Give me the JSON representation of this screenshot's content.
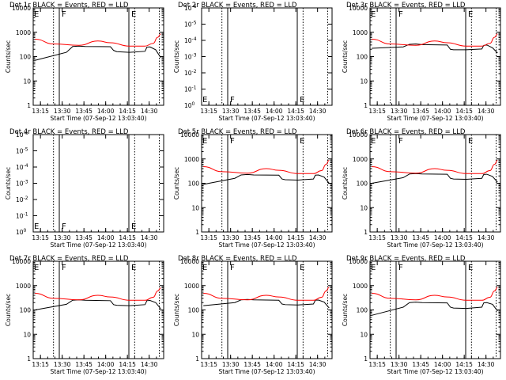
{
  "colors": {
    "events": "#000000",
    "lld": "#ff0000",
    "background": "#ffffff"
  },
  "chart_data": [
    {
      "type": "line",
      "title": "Det 1r BLACK = Events, RED = LLD",
      "xlabel": "Start Time (07-Sep-12 13:03:40)",
      "ylabel": "Counts/sec",
      "scale": "log",
      "yticks": [
        "1",
        "10",
        "100",
        "1000",
        "10000"
      ],
      "xticks": [
        "13:15",
        "13:30",
        "13:45",
        "14:00",
        "14:15",
        "14:30"
      ],
      "markers": [
        {
          "x": "13:28",
          "label": "F"
        },
        {
          "x": "14:16",
          "label": "E"
        }
      ],
      "series": [
        {
          "name": "Events",
          "color": "#000000",
          "x": [
            0,
            0.5,
            0.6,
            0.7,
            0.8,
            1.2,
            1.25,
            1.3,
            1.5,
            1.75,
            1.78,
            1.83,
            1.92,
            2.0
          ],
          "y": [
            70,
            150,
            260,
            270,
            260,
            255,
            180,
            160,
            150,
            165,
            245,
            250,
            190,
            90
          ]
        },
        {
          "name": "LLD",
          "color": "#ff0000",
          "x": [
            0,
            0.3,
            0.7,
            1.0,
            1.2,
            1.5,
            1.75,
            1.88,
            1.95,
            2.0
          ],
          "y": [
            520,
            330,
            290,
            440,
            370,
            270,
            270,
            350,
            620,
            850
          ]
        }
      ]
    },
    {
      "type": "line",
      "title": "Det 2r BLACK = Events, RED = LLD",
      "xlabel": "Start Time (07-Sep-12 13:03:40)",
      "ylabel": "Counts/sec",
      "scale": "linear-small",
      "yticks": [
        "10^0",
        "10^-1",
        "10^-2",
        "10^-3",
        "10^-4",
        "10^-5",
        "10^-6"
      ],
      "xticks": [
        "13:15",
        "13:30",
        "13:45",
        "14:00",
        "14:15",
        "14:30"
      ],
      "markers": [
        {
          "x": "13:28",
          "label": "F"
        },
        {
          "x": "14:16",
          "label": "E"
        }
      ],
      "series": []
    },
    {
      "type": "line",
      "title": "Det 3r BLACK = Events, RED = LLD",
      "xlabel": "Start Time (07-Sep-12 13:03:40)",
      "ylabel": "Counts/sec",
      "scale": "log",
      "yticks": [
        "1",
        "10",
        "100",
        "1000",
        "10000"
      ],
      "xticks": [
        "13:15",
        "13:30",
        "13:45",
        "14:00",
        "14:15",
        "14:30"
      ],
      "markers": [
        {
          "x": "13:28",
          "label": "F"
        },
        {
          "x": "14:16",
          "label": "E"
        }
      ],
      "series": [
        {
          "name": "Events",
          "color": "#000000",
          "x": [
            0,
            0.5,
            0.6,
            0.7,
            0.8,
            1.2,
            1.25,
            1.3,
            1.5,
            1.75,
            1.78,
            1.83,
            1.92,
            2.0
          ],
          "y": [
            220,
            250,
            320,
            330,
            310,
            300,
            200,
            190,
            190,
            205,
            290,
            300,
            230,
            140
          ]
        },
        {
          "name": "LLD",
          "color": "#ff0000",
          "x": [
            0,
            0.3,
            0.7,
            1.0,
            1.2,
            1.5,
            1.75,
            1.88,
            1.95,
            2.0
          ],
          "y": [
            520,
            330,
            290,
            440,
            370,
            270,
            270,
            350,
            620,
            850
          ]
        }
      ]
    },
    {
      "type": "line",
      "title": "Det 4r BLACK = Events, RED = LLD",
      "xlabel": "Start Time (07-Sep-12 13:03:40)",
      "ylabel": "Counts/sec",
      "scale": "linear-small",
      "yticks": [
        "10^0",
        "10^-1",
        "10^-2",
        "10^-3",
        "10^-4",
        "10^-5",
        "10^-6"
      ],
      "xticks": [
        "13:15",
        "13:30",
        "13:45",
        "14:00",
        "14:15",
        "14:30"
      ],
      "markers": [
        {
          "x": "13:28",
          "label": "F"
        },
        {
          "x": "14:16",
          "label": "E"
        }
      ],
      "series": []
    },
    {
      "type": "line",
      "title": "Det 5r BLACK = Events, RED = LLD",
      "xlabel": "Start Time (07-Sep-12 13:03:40)",
      "ylabel": "Counts/sec",
      "scale": "log",
      "yticks": [
        "1",
        "10",
        "100",
        "1000",
        "10000"
      ],
      "xticks": [
        "13:15",
        "13:30",
        "13:45",
        "14:00",
        "14:15",
        "14:30"
      ],
      "markers": [
        {
          "x": "13:28",
          "label": "F"
        },
        {
          "x": "14:16",
          "label": "E"
        }
      ],
      "series": [
        {
          "name": "Events",
          "color": "#000000",
          "x": [
            0,
            0.5,
            0.6,
            0.7,
            0.8,
            1.2,
            1.25,
            1.3,
            1.5,
            1.75,
            1.78,
            1.83,
            1.92,
            2.0
          ],
          "y": [
            90,
            160,
            220,
            230,
            220,
            215,
            150,
            140,
            135,
            150,
            215,
            220,
            180,
            100
          ]
        },
        {
          "name": "LLD",
          "color": "#ff0000",
          "x": [
            0,
            0.3,
            0.7,
            1.0,
            1.2,
            1.5,
            1.75,
            1.88,
            1.95,
            2.0
          ],
          "y": [
            480,
            300,
            260,
            400,
            340,
            250,
            250,
            330,
            600,
            880
          ]
        }
      ]
    },
    {
      "type": "line",
      "title": "Det 6r BLACK = Events, RED = LLD",
      "xlabel": "Start Time (07-Sep-12 13:03:40)",
      "ylabel": "Counts/sec",
      "scale": "log",
      "yticks": [
        "1",
        "10",
        "100",
        "1000",
        "10000"
      ],
      "xticks": [
        "13:15",
        "13:30",
        "13:45",
        "14:00",
        "14:15",
        "14:30"
      ],
      "markers": [
        {
          "x": "13:28",
          "label": "F"
        },
        {
          "x": "14:16",
          "label": "E"
        }
      ],
      "series": [
        {
          "name": "Events",
          "color": "#000000",
          "x": [
            0,
            0.5,
            0.6,
            0.7,
            0.8,
            1.2,
            1.25,
            1.3,
            1.5,
            1.75,
            1.78,
            1.83,
            1.92,
            2.0
          ],
          "y": [
            100,
            170,
            240,
            250,
            240,
            235,
            160,
            150,
            145,
            160,
            230,
            235,
            190,
            110
          ]
        },
        {
          "name": "LLD",
          "color": "#ff0000",
          "x": [
            0,
            0.3,
            0.7,
            1.0,
            1.2,
            1.5,
            1.75,
            1.88,
            1.95,
            2.0
          ],
          "y": [
            480,
            300,
            260,
            400,
            340,
            250,
            250,
            330,
            600,
            880
          ]
        }
      ]
    },
    {
      "type": "line",
      "title": "Det 7r BLACK = Events, RED = LLD",
      "xlabel": "Start Time (07-Sep-12 13:03:40)",
      "ylabel": "Counts/sec",
      "scale": "log",
      "yticks": [
        "1",
        "10",
        "100",
        "1000",
        "10000"
      ],
      "xticks": [
        "13:15",
        "13:30",
        "13:45",
        "14:00",
        "14:15",
        "14:30"
      ],
      "markers": [
        {
          "x": "13:28",
          "label": "F"
        },
        {
          "x": "14:16",
          "label": "E"
        }
      ],
      "series": [
        {
          "name": "Events",
          "color": "#000000",
          "x": [
            0,
            0.5,
            0.6,
            0.7,
            0.8,
            1.2,
            1.25,
            1.3,
            1.5,
            1.75,
            1.78,
            1.83,
            1.92,
            2.0
          ],
          "y": [
            100,
            170,
            250,
            260,
            250,
            240,
            165,
            155,
            150,
            165,
            240,
            245,
            200,
            110
          ]
        },
        {
          "name": "LLD",
          "color": "#ff0000",
          "x": [
            0,
            0.3,
            0.7,
            1.0,
            1.2,
            1.5,
            1.75,
            1.88,
            1.95,
            2.0
          ],
          "y": [
            480,
            300,
            260,
            400,
            340,
            250,
            250,
            330,
            600,
            800
          ]
        }
      ]
    },
    {
      "type": "line",
      "title": "Det 8r BLACK = Events, RED = LLD",
      "xlabel": "Start Time (07-Sep-12 13:03:40)",
      "ylabel": "Counts/sec",
      "scale": "log",
      "yticks": [
        "1",
        "10",
        "100",
        "1000",
        "10000"
      ],
      "xticks": [
        "13:15",
        "13:30",
        "13:45",
        "14:00",
        "14:15",
        "14:30"
      ],
      "markers": [
        {
          "x": "13:28",
          "label": "F"
        },
        {
          "x": "14:16",
          "label": "E"
        }
      ],
      "series": [
        {
          "name": "Events",
          "color": "#000000",
          "x": [
            0,
            0.5,
            0.6,
            0.7,
            0.8,
            1.2,
            1.25,
            1.3,
            1.5,
            1.75,
            1.78,
            1.83,
            1.92,
            2.0
          ],
          "y": [
            150,
            200,
            260,
            270,
            260,
            250,
            175,
            165,
            160,
            175,
            250,
            255,
            210,
            120
          ]
        },
        {
          "name": "LLD",
          "color": "#ff0000",
          "x": [
            0,
            0.3,
            0.7,
            1.0,
            1.2,
            1.5,
            1.75,
            1.88,
            1.95,
            2.0
          ],
          "y": [
            480,
            300,
            260,
            400,
            340,
            250,
            250,
            330,
            600,
            850
          ]
        }
      ]
    },
    {
      "type": "line",
      "title": "Det 9r BLACK = Events, RED = LLD",
      "xlabel": "Start Time (07-Sep-12 13:03:40)",
      "ylabel": "Counts/sec",
      "scale": "log",
      "yticks": [
        "1",
        "10",
        "100",
        "1000",
        "10000"
      ],
      "xticks": [
        "13:15",
        "13:30",
        "13:45",
        "14:00",
        "14:15",
        "14:30"
      ],
      "markers": [
        {
          "x": "13:28",
          "label": "F"
        },
        {
          "x": "14:16",
          "label": "E"
        }
      ],
      "series": [
        {
          "name": "Events",
          "color": "#000000",
          "x": [
            0,
            0.5,
            0.6,
            0.7,
            0.8,
            1.2,
            1.25,
            1.3,
            1.5,
            1.75,
            1.78,
            1.83,
            1.92,
            2.0
          ],
          "y": [
            60,
            130,
            200,
            210,
            200,
            195,
            130,
            120,
            115,
            130,
            195,
            200,
            170,
            90
          ]
        },
        {
          "name": "LLD",
          "color": "#ff0000",
          "x": [
            0,
            0.3,
            0.7,
            1.0,
            1.2,
            1.5,
            1.75,
            1.88,
            1.95,
            2.0
          ],
          "y": [
            480,
            300,
            260,
            400,
            340,
            250,
            250,
            330,
            600,
            850
          ]
        }
      ]
    }
  ]
}
